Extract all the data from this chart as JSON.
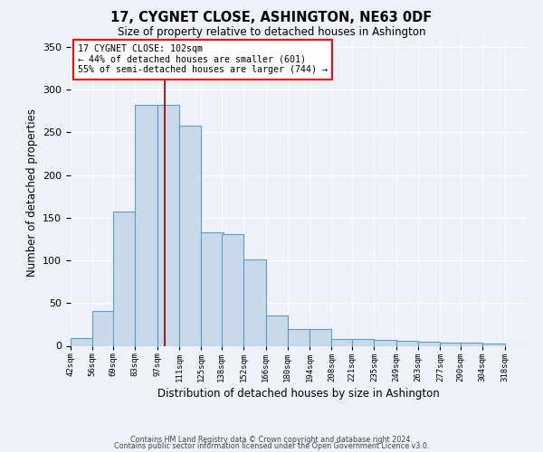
{
  "title": "17, CYGNET CLOSE, ASHINGTON, NE63 0DF",
  "subtitle": "Size of property relative to detached houses in Ashington",
  "xlabel": "Distribution of detached houses by size in Ashington",
  "ylabel": "Number of detached properties",
  "footnote1": "Contains HM Land Registry data © Crown copyright and database right 2024.",
  "footnote2": "Contains public sector information licensed under the Open Government Licence v3.0.",
  "annotation_line1": "17 CYGNET CLOSE: 102sqm",
  "annotation_line2": "← 44% of detached houses are smaller (601)",
  "annotation_line3": "55% of semi-detached houses are larger (744) →",
  "property_size": 102,
  "bar_color": "#c8daea",
  "bar_edge_color": "#5a9ec9",
  "vline_color": "#8b0000",
  "background_color": "#eef2f8",
  "categories": [
    "42sqm",
    "56sqm",
    "69sqm",
    "83sqm",
    "97sqm",
    "111sqm",
    "125sqm",
    "138sqm",
    "152sqm",
    "166sqm",
    "180sqm",
    "194sqm",
    "208sqm",
    "221sqm",
    "235sqm",
    "249sqm",
    "263sqm",
    "277sqm",
    "290sqm",
    "304sqm",
    "318sqm"
  ],
  "bin_left": [
    42,
    56,
    69,
    83,
    97,
    111,
    125,
    138,
    152,
    166,
    180,
    194,
    208,
    221,
    235,
    249,
    263,
    277,
    290,
    304,
    318
  ],
  "bin_width": 14,
  "values": [
    9,
    41,
    157,
    282,
    282,
    258,
    133,
    131,
    101,
    35,
    20,
    20,
    8,
    8,
    7,
    6,
    5,
    4,
    4,
    3,
    0
  ],
  "ylim": [
    0,
    360
  ],
  "yticks": [
    0,
    50,
    100,
    150,
    200,
    250,
    300,
    350
  ]
}
